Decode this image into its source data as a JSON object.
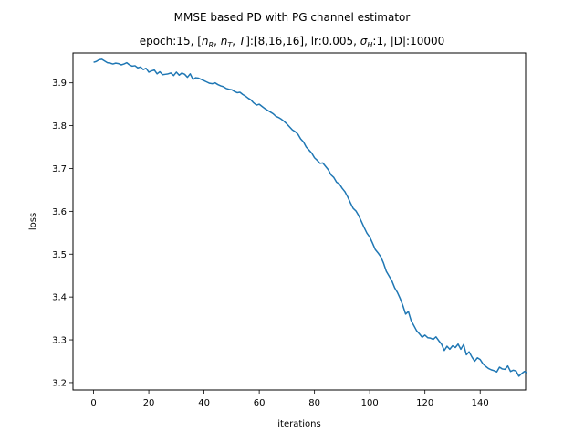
{
  "figure": {
    "title_line1": "MMSE based PD with PG channel estimator",
    "title_line2": "epoch:15, [n_R, n_T, T]:[8,16,16], lr:0.005, σ_H:1, |D|:10000"
  },
  "chart_data": {
    "type": "line",
    "title": "MMSE based PD with PG channel estimator",
    "subtitle": "epoch:15, [n_R, n_T, T]:[8,16,16], lr:0.005, σ_H:1, |D|:10000",
    "xlabel": "iterations",
    "ylabel": "loss",
    "xlim": [
      -7.45,
      156.45
    ],
    "ylim": [
      3.1828,
      3.9697
    ],
    "xticks": [
      0,
      20,
      40,
      60,
      80,
      100,
      120,
      140
    ],
    "yticks": [
      3.2,
      3.3,
      3.4,
      3.5,
      3.6,
      3.7,
      3.8,
      3.9
    ],
    "grid": false,
    "legend": "none",
    "line_color": "#1f77b4",
    "series": [
      {
        "values": [
          3.948,
          3.95,
          3.954,
          3.955,
          3.951,
          3.947,
          3.946,
          3.944,
          3.946,
          3.945,
          3.942,
          3.944,
          3.947,
          3.942,
          3.939,
          3.94,
          3.935,
          3.937,
          3.931,
          3.934,
          3.925,
          3.928,
          3.93,
          3.921,
          3.926,
          3.919,
          3.92,
          3.921,
          3.923,
          3.917,
          3.925,
          3.918,
          3.923,
          3.92,
          3.913,
          3.921,
          3.908,
          3.912,
          3.911,
          3.908,
          3.905,
          3.902,
          3.899,
          3.898,
          3.9,
          3.896,
          3.893,
          3.891,
          3.887,
          3.885,
          3.884,
          3.88,
          3.877,
          3.878,
          3.873,
          3.869,
          3.864,
          3.86,
          3.853,
          3.848,
          3.85,
          3.845,
          3.84,
          3.836,
          3.832,
          3.828,
          3.822,
          3.819,
          3.815,
          3.81,
          3.804,
          3.797,
          3.79,
          3.786,
          3.78,
          3.769,
          3.762,
          3.75,
          3.743,
          3.736,
          3.725,
          3.719,
          3.712,
          3.713,
          3.705,
          3.697,
          3.685,
          3.679,
          3.668,
          3.664,
          3.654,
          3.646,
          3.634,
          3.62,
          3.607,
          3.601,
          3.59,
          3.576,
          3.562,
          3.549,
          3.54,
          3.526,
          3.511,
          3.503,
          3.494,
          3.479,
          3.46,
          3.449,
          3.438,
          3.422,
          3.411,
          3.397,
          3.38,
          3.36,
          3.366,
          3.345,
          3.333,
          3.321,
          3.314,
          3.306,
          3.311,
          3.305,
          3.304,
          3.301,
          3.307,
          3.298,
          3.29,
          3.275,
          3.285,
          3.278,
          3.286,
          3.282,
          3.29,
          3.278,
          3.289,
          3.265,
          3.272,
          3.26,
          3.25,
          3.258,
          3.254,
          3.244,
          3.238,
          3.233,
          3.23,
          3.228,
          3.225,
          3.236,
          3.232,
          3.231,
          3.239,
          3.226,
          3.229,
          3.227,
          3.215,
          3.221,
          3.226,
          3.223
        ]
      }
    ]
  }
}
